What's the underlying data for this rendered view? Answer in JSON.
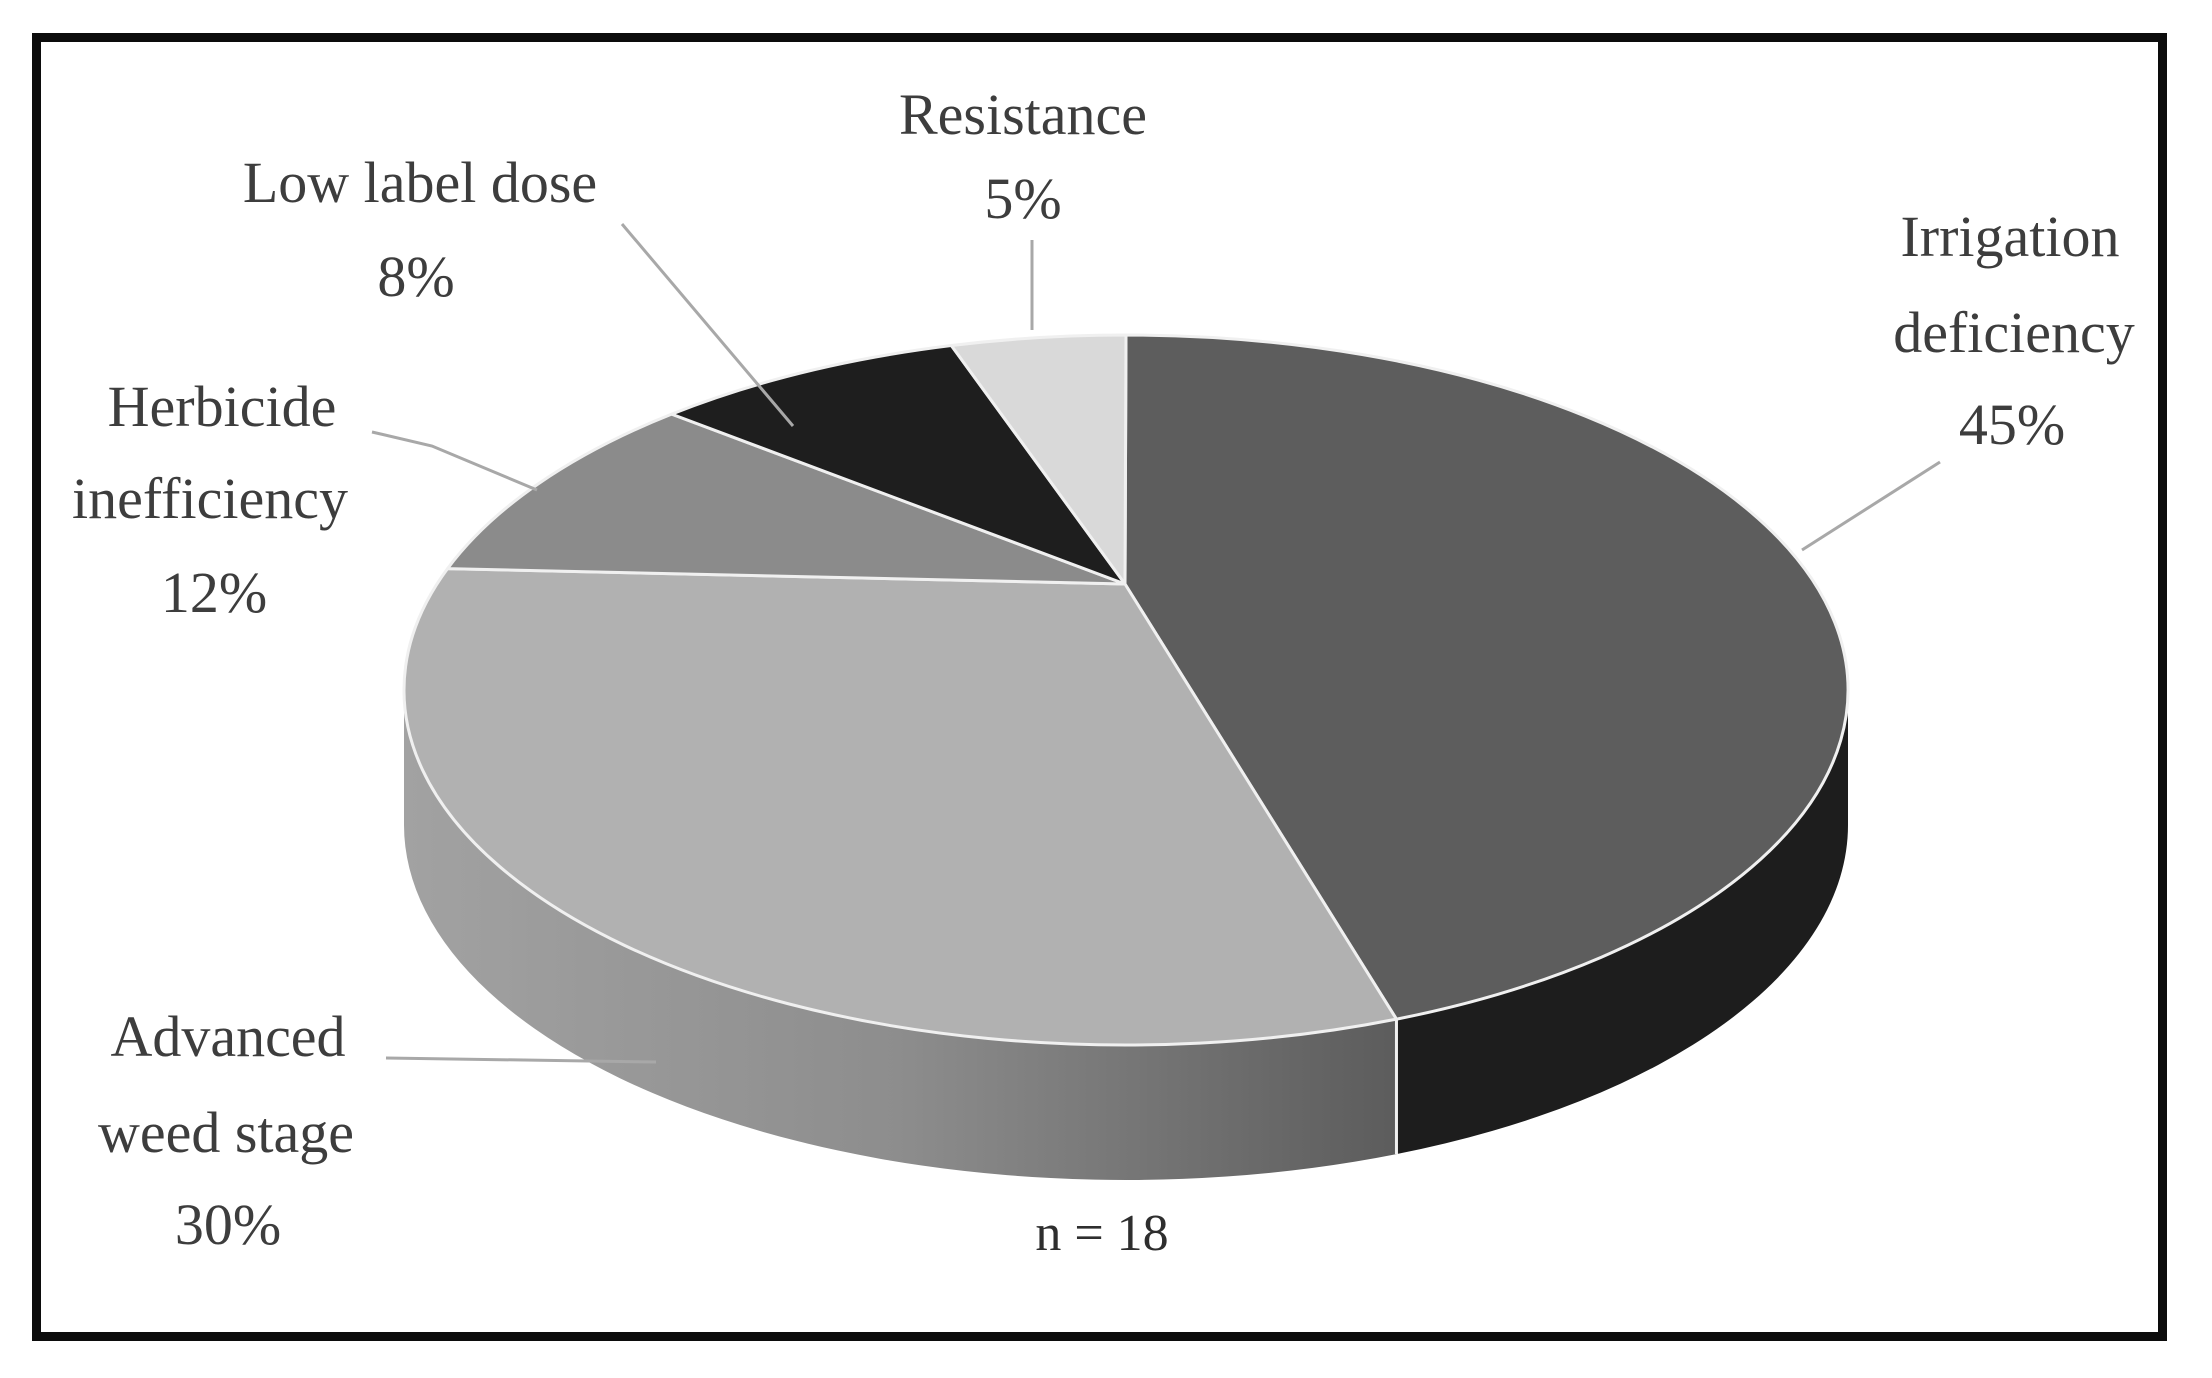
{
  "figure": {
    "background_color": "#ffffff",
    "frame_color": "#0c0c0c",
    "text_color": "#3d3d3d",
    "leader_line_color": "#a8a8a8",
    "separator_line_color": "#f0f0f0",
    "sample_size_label": "n = 18"
  },
  "chart_data": {
    "type": "pie",
    "style": "3d",
    "start_position": "12-o-clock",
    "direction": "clockwise",
    "title": "",
    "legend_position": "none",
    "annotation": "n = 18",
    "n": 18,
    "unit": "%",
    "categories": [
      "Irrigation deficiency",
      "Advanced weed stage",
      "Herbicide inefficiency",
      "Low label dose",
      "Resistance"
    ],
    "values": [
      45,
      30,
      12,
      8,
      5
    ],
    "slices": [
      {
        "name": "Irrigation deficiency",
        "value": 45,
        "pct_label": "45%",
        "color": "#5d5d5d",
        "side_color": "#1d1d1d",
        "label_lines": [
          "Irrigation",
          "deficiency",
          "45%"
        ]
      },
      {
        "name": "Advanced weed stage",
        "value": 30,
        "pct_label": "30%",
        "color": "#b1b1b1",
        "side_color_left": "#a2a2a2",
        "side_color_mid": "#8d8d8d",
        "side_color_right": "#5c5c5c",
        "label_lines": [
          "Advanced",
          "weed stage",
          "30%"
        ]
      },
      {
        "name": "Herbicide inefficiency",
        "value": 12,
        "pct_label": "12%",
        "color": "#8b8b8b",
        "label_lines": [
          "Herbicide",
          "inefficiency",
          "12%"
        ]
      },
      {
        "name": "Low label dose",
        "value": 8,
        "pct_label": "8%",
        "color": "#1e1e1e",
        "label_lines": [
          "Low label dose",
          "8%"
        ]
      },
      {
        "name": "Resistance",
        "value": 5,
        "pct_label": "5%",
        "color": "#d9d9d9",
        "label_lines": [
          "Resistance",
          "5%"
        ]
      }
    ]
  }
}
